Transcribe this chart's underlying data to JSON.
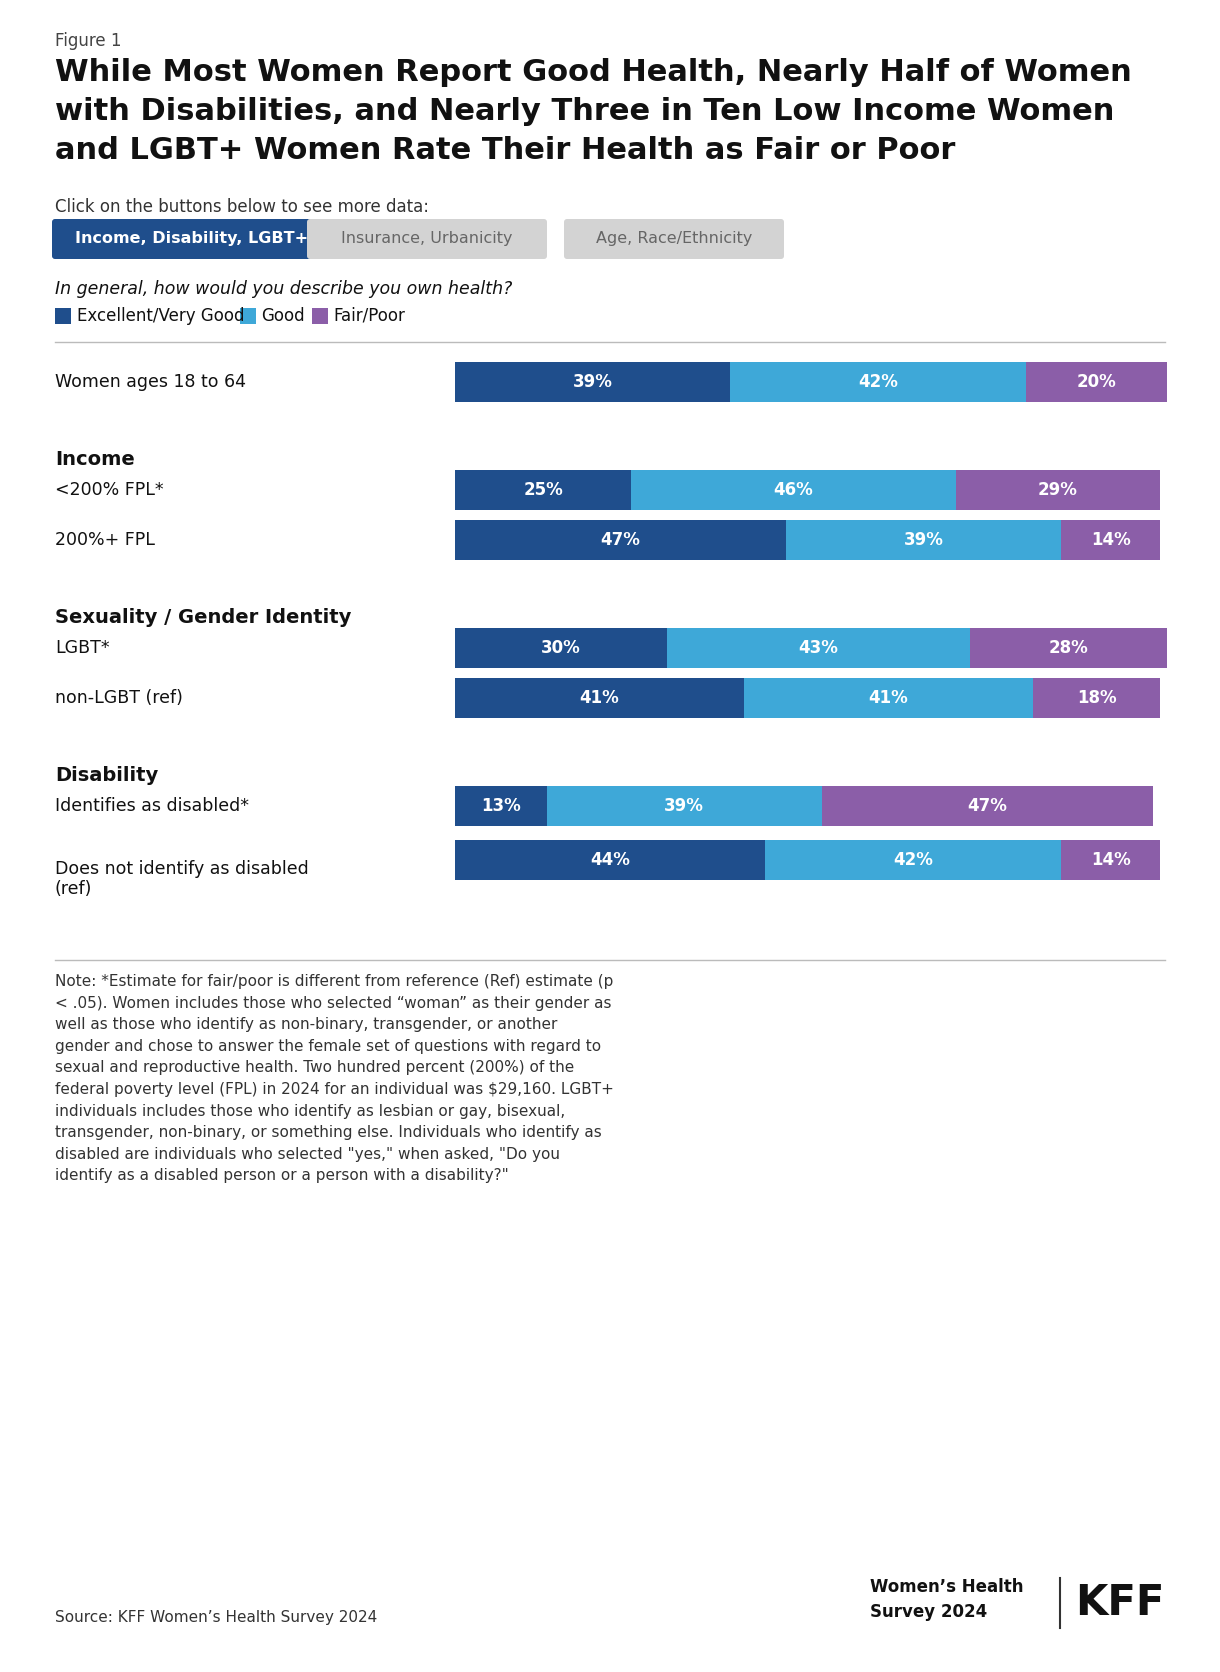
{
  "figure_label": "Figure 1",
  "title_line1": "While Most Women Report Good Health, Nearly Half of Women",
  "title_line2": "with Disabilities, and Nearly Three in Ten Low Income Women",
  "title_line3": "and LGBT+ Women Rate Their Health as Fair or Poor",
  "subtitle": "Click on the buttons below to see more data:",
  "buttons": [
    "Income, Disability, LGBT+",
    "Insurance, Urbanicity",
    "Age, Race/Ethnicity"
  ],
  "question": "In general, how would you describe you own health?",
  "legend_labels": [
    "Excellent/Very Good",
    "Good",
    "Fair/Poor"
  ],
  "legend_colors": [
    "#1f4e8c",
    "#3ea8d8",
    "#8b5ea8"
  ],
  "categories": [
    {
      "label": "Women ages 18 to 64",
      "group": null,
      "values": [
        39,
        42,
        20
      ]
    },
    {
      "label": "Income",
      "group": "header",
      "values": null
    },
    {
      "label": "<200% FPL*",
      "group": "Income",
      "values": [
        25,
        46,
        29
      ]
    },
    {
      "label": "200%+ FPL",
      "group": "Income",
      "values": [
        47,
        39,
        14
      ]
    },
    {
      "label": "Sexuality / Gender Identity",
      "group": "header",
      "values": null
    },
    {
      "label": "LGBT*",
      "group": "Sexuality",
      "values": [
        30,
        43,
        28
      ]
    },
    {
      "label": "non-LGBT (ref)",
      "group": "Sexuality",
      "values": [
        41,
        41,
        18
      ]
    },
    {
      "label": "Disability",
      "group": "header",
      "values": null
    },
    {
      "label": "Identifies as disabled*",
      "group": "Disability",
      "values": [
        13,
        39,
        47
      ]
    },
    {
      "label": "Does not identify as disabled\n(ref)",
      "group": "Disability",
      "values": [
        44,
        42,
        14
      ]
    }
  ],
  "colors": {
    "excellent": "#1f4e8c",
    "good": "#3ea8d8",
    "fair_poor": "#8b5ea8",
    "button_active_bg": "#1f4e8c",
    "button_inactive_bg": "#d3d3d3",
    "button_active_text": "#ffffff",
    "button_inactive_text": "#666666"
  },
  "note_text": "Note: *Estimate for fair/poor is different from reference (Ref) estimate (p\n< .05). Women includes those who selected “woman” as their gender as\nwell as those who identify as non-binary, transgender, or another\ngender and chose to answer the female set of questions with regard to\nsexual and reproductive health. Two hundred percent (200%) of the\nfederal poverty level (FPL) in 2024 for an individual was $29,160. LGBT+\nindividuals includes those who identify as lesbian or gay, bisexual,\ntransgender, non-binary, or something else. Individuals who identify as\ndisabled are individuals who selected \"yes,\" when asked, \"Do you\nidentify as a disabled person or a person with a disability?\"",
  "source_text": "Source: KFF Women’s Health Survey 2024",
  "branding": "Women’s Health\nSurvey 2024"
}
